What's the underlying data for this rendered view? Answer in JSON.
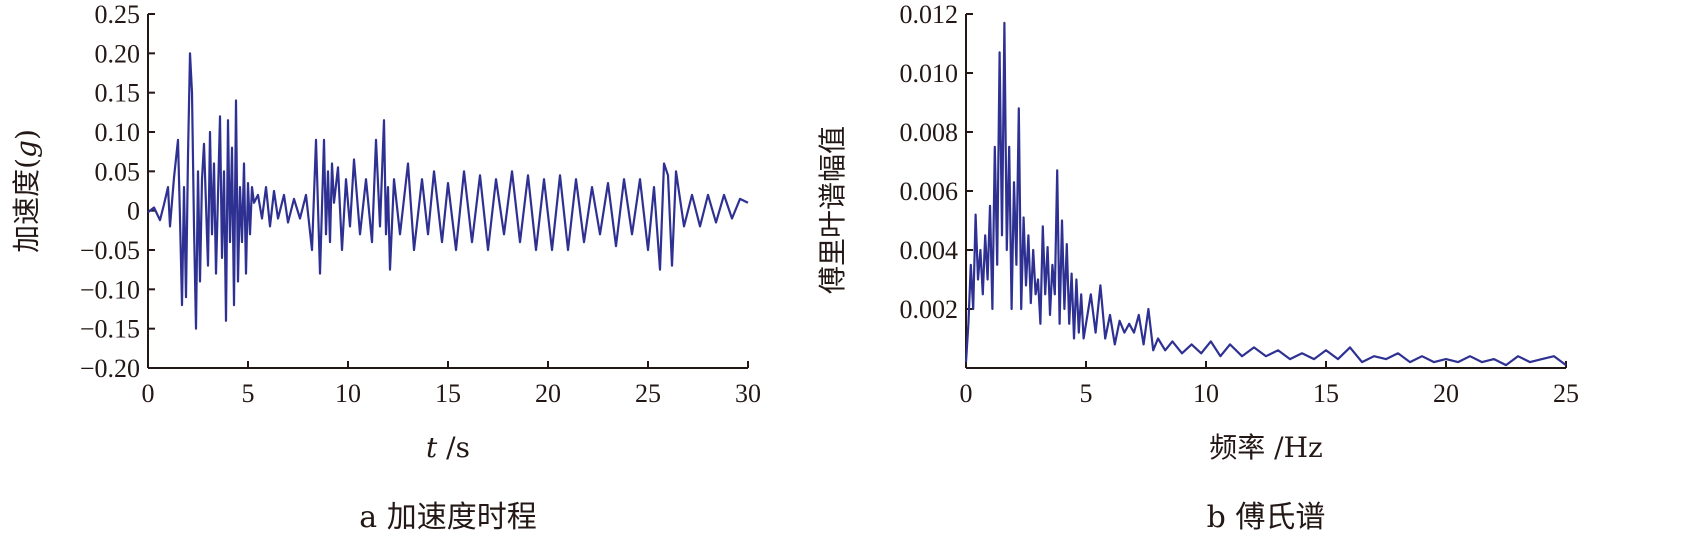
{
  "chart_data": [
    {
      "type": "line",
      "caption": "a 加速度时程",
      "xlabel_italic": "t",
      "xlabel_rest": " /s",
      "ylabel_prefix": "加速度(",
      "ylabel_italic": "g",
      "ylabel_suffix": ")",
      "xlim": [
        0,
        30
      ],
      "ylim": [
        -0.2,
        0.25
      ],
      "xticks": [
        0,
        5,
        10,
        15,
        20,
        25,
        30
      ],
      "xtick_labels": [
        "0",
        "5",
        "10",
        "15",
        "20",
        "25",
        "30"
      ],
      "yticks": [
        0.25,
        0.2,
        0.15,
        0.1,
        0.05,
        0,
        -0.05,
        -0.1,
        -0.15,
        -0.2
      ],
      "ytick_labels": [
        "0.25",
        "0.20",
        "0.15",
        "0.10",
        "0.05",
        "0",
        "−0.05",
        "−0.10",
        "−0.15",
        "−0.20"
      ],
      "series": [
        {
          "color": "#2e3192",
          "x": [
            0,
            0.3,
            0.6,
            0.8,
            1.0,
            1.1,
            1.3,
            1.5,
            1.6,
            1.7,
            1.8,
            1.9,
            2.0,
            2.1,
            2.2,
            2.3,
            2.4,
            2.5,
            2.6,
            2.7,
            2.8,
            3.0,
            3.1,
            3.2,
            3.3,
            3.4,
            3.5,
            3.6,
            3.7,
            3.8,
            3.9,
            4.0,
            4.1,
            4.2,
            4.3,
            4.4,
            4.5,
            4.6,
            4.7,
            4.8,
            4.9,
            5.0,
            5.1,
            5.2,
            5.3,
            5.5,
            5.7,
            5.9,
            6.1,
            6.3,
            6.5,
            6.8,
            7.0,
            7.3,
            7.6,
            7.9,
            8.2,
            8.4,
            8.6,
            8.8,
            8.9,
            9.0,
            9.1,
            9.2,
            9.3,
            9.5,
            9.7,
            9.9,
            10.1,
            10.3,
            10.6,
            10.9,
            11.2,
            11.4,
            11.6,
            11.8,
            11.9,
            12.0,
            12.1,
            12.3,
            12.6,
            13.0,
            13.3,
            13.7,
            14.0,
            14.3,
            14.7,
            15.0,
            15.4,
            15.8,
            16.2,
            16.6,
            17.0,
            17.4,
            17.8,
            18.2,
            18.6,
            19.0,
            19.4,
            19.8,
            20.2,
            20.6,
            21.0,
            21.4,
            21.8,
            22.2,
            22.6,
            23.0,
            23.4,
            23.8,
            24.2,
            24.6,
            25.0,
            25.3,
            25.6,
            25.8,
            26.0,
            26.2,
            26.4,
            26.8,
            27.2,
            27.6,
            28.0,
            28.4,
            28.8,
            29.2,
            29.6,
            30.0
          ],
          "y": [
            -0.002,
            0.004,
            -0.012,
            0.008,
            0.03,
            -0.02,
            0.042,
            0.09,
            -0.01,
            -0.12,
            0.03,
            -0.11,
            0.07,
            0.2,
            0.15,
            -0.02,
            -0.15,
            0.05,
            -0.09,
            0.04,
            0.085,
            -0.07,
            0.1,
            -0.03,
            0.06,
            -0.08,
            0.02,
            0.12,
            -0.06,
            0.05,
            -0.14,
            0.115,
            -0.04,
            0.08,
            -0.12,
            0.14,
            -0.09,
            0.03,
            -0.04,
            0.06,
            -0.08,
            0.035,
            -0.03,
            0.03,
            0.01,
            0.02,
            -0.01,
            0.03,
            -0.02,
            0.025,
            -0.01,
            0.02,
            -0.015,
            0.015,
            -0.01,
            0.02,
            -0.05,
            0.09,
            -0.08,
            0.09,
            -0.03,
            0.05,
            -0.04,
            0.06,
            0.01,
            0.055,
            -0.05,
            0.04,
            -0.02,
            0.065,
            -0.03,
            0.04,
            -0.04,
            0.09,
            -0.02,
            0.115,
            -0.03,
            0.03,
            -0.075,
            0.04,
            -0.03,
            0.06,
            -0.05,
            0.04,
            -0.03,
            0.05,
            -0.04,
            0.035,
            -0.05,
            0.05,
            -0.04,
            0.045,
            -0.05,
            0.04,
            -0.03,
            0.05,
            -0.04,
            0.045,
            -0.05,
            0.04,
            -0.05,
            0.045,
            -0.05,
            0.04,
            -0.04,
            0.03,
            -0.03,
            0.035,
            -0.045,
            0.04,
            -0.03,
            0.04,
            -0.05,
            0.03,
            -0.075,
            0.06,
            0.045,
            -0.07,
            0.05,
            -0.02,
            0.02,
            -0.02,
            0.02,
            -0.015,
            0.02,
            -0.01,
            0.015,
            0.01
          ]
        }
      ]
    },
    {
      "type": "line",
      "caption": "b 傅氏谱",
      "xlabel": "频率 /Hz",
      "ylabel": "傅里叶谱幅值",
      "xlim": [
        0,
        25
      ],
      "ylim": [
        0,
        0.012
      ],
      "xticks": [
        0,
        5,
        10,
        15,
        20,
        25
      ],
      "xtick_labels": [
        "0",
        "5",
        "10",
        "15",
        "20",
        "25"
      ],
      "yticks": [
        0.012,
        0.01,
        0.008,
        0.006,
        0.004,
        0.002
      ],
      "ytick_labels": [
        "0.012",
        "0.010",
        "0.008",
        "0.006",
        "0.004",
        "0.002"
      ],
      "series": [
        {
          "color": "#2e3192",
          "x": [
            0,
            0.1,
            0.2,
            0.3,
            0.4,
            0.5,
            0.6,
            0.7,
            0.8,
            0.9,
            1.0,
            1.1,
            1.2,
            1.3,
            1.4,
            1.5,
            1.6,
            1.7,
            1.8,
            1.9,
            2.0,
            2.1,
            2.2,
            2.3,
            2.4,
            2.5,
            2.6,
            2.7,
            2.8,
            2.9,
            3.0,
            3.1,
            3.2,
            3.3,
            3.4,
            3.5,
            3.6,
            3.7,
            3.8,
            3.9,
            4.0,
            4.1,
            4.2,
            4.3,
            4.4,
            4.5,
            4.6,
            4.7,
            4.8,
            4.9,
            5.0,
            5.2,
            5.4,
            5.6,
            5.8,
            6.0,
            6.2,
            6.4,
            6.6,
            6.8,
            7.0,
            7.2,
            7.4,
            7.6,
            7.8,
            8.0,
            8.3,
            8.6,
            9.0,
            9.4,
            9.8,
            10.2,
            10.6,
            11.0,
            11.5,
            12.0,
            12.5,
            13.0,
            13.5,
            14.0,
            14.5,
            15.0,
            15.5,
            16.0,
            16.5,
            17.0,
            17.5,
            18.0,
            18.5,
            19.0,
            19.5,
            20.0,
            20.5,
            21.0,
            21.5,
            22.0,
            22.5,
            23.0,
            23.5,
            24.0,
            24.5,
            25.0
          ],
          "y": [
            0.0002,
            0.0015,
            0.0035,
            0.002,
            0.0052,
            0.003,
            0.004,
            0.0025,
            0.0045,
            0.003,
            0.0055,
            0.002,
            0.0075,
            0.0035,
            0.0107,
            0.0045,
            0.0117,
            0.004,
            0.0075,
            0.002,
            0.0063,
            0.0035,
            0.0088,
            0.002,
            0.0051,
            0.0028,
            0.0045,
            0.0022,
            0.004,
            0.0025,
            0.003,
            0.0015,
            0.0048,
            0.0025,
            0.0041,
            0.0018,
            0.0035,
            0.0025,
            0.0067,
            0.0015,
            0.005,
            0.002,
            0.0042,
            0.0015,
            0.0032,
            0.001,
            0.003,
            0.0012,
            0.0025,
            0.001,
            0.0015,
            0.0025,
            0.0012,
            0.0028,
            0.001,
            0.0018,
            0.0008,
            0.0016,
            0.0012,
            0.0015,
            0.0012,
            0.0018,
            0.0008,
            0.002,
            0.0006,
            0.001,
            0.0006,
            0.0009,
            0.0005,
            0.0008,
            0.0005,
            0.0009,
            0.0004,
            0.0008,
            0.0004,
            0.0007,
            0.0004,
            0.0006,
            0.0003,
            0.0005,
            0.0003,
            0.0006,
            0.0003,
            0.0007,
            0.0002,
            0.0004,
            0.0003,
            0.0005,
            0.0002,
            0.0004,
            0.0002,
            0.0003,
            0.0002,
            0.0004,
            0.0002,
            0.0003,
            0.0001,
            0.0004,
            0.0002,
            0.0003,
            0.0004,
            0.0001
          ]
        }
      ]
    }
  ]
}
